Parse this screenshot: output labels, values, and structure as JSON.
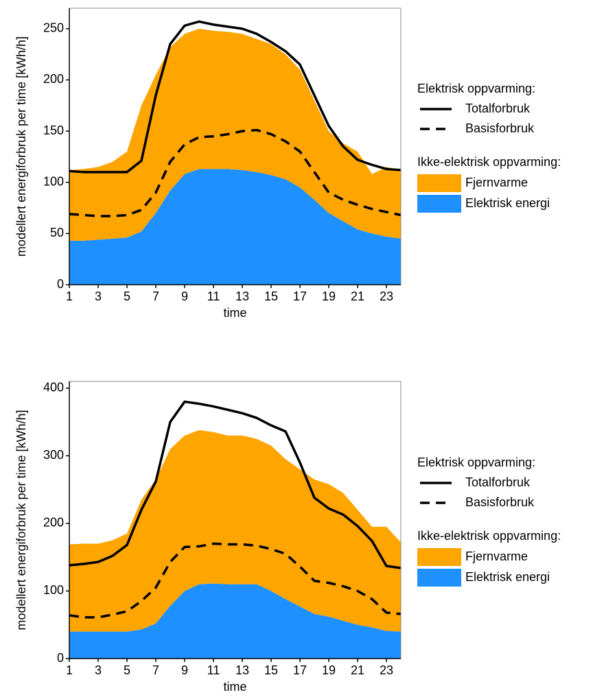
{
  "chart_data": [
    {
      "type": "stacked_area_line",
      "ylabel": "modellert energiforbruk per time [kWh/h]",
      "xlabel": "time",
      "x": [
        1,
        2,
        3,
        4,
        5,
        6,
        7,
        8,
        9,
        10,
        11,
        12,
        13,
        14,
        15,
        16,
        17,
        18,
        19,
        20,
        21,
        22,
        23,
        24
      ],
      "xlim": [
        1,
        24
      ],
      "xticks": [
        1,
        3,
        5,
        7,
        9,
        11,
        13,
        15,
        17,
        19,
        21,
        23
      ],
      "ylim": [
        0,
        270
      ],
      "yticks": [
        0,
        50,
        100,
        150,
        200,
        250
      ],
      "line_legend_title": "Elektrisk oppvarming:",
      "area_legend_title": "Ikke-elektrisk oppvarming:",
      "lines": [
        {
          "name": "Totalforbruk",
          "color": "#000000",
          "dashed": false,
          "values": [
            111,
            110,
            110,
            110,
            110,
            121,
            185,
            235,
            253,
            257,
            254,
            252,
            250,
            245,
            237,
            228,
            215,
            185,
            155,
            135,
            122,
            117,
            113,
            112
          ]
        },
        {
          "name": "Basisforbruk",
          "color": "#000000",
          "dashed": true,
          "values": [
            69,
            68,
            67,
            67,
            68,
            73,
            90,
            120,
            137,
            144,
            145,
            147,
            150,
            151,
            147,
            140,
            130,
            110,
            90,
            83,
            78,
            74,
            71,
            68
          ]
        }
      ],
      "series": [
        {
          "name": "Fjernvarme",
          "color": "#ffa500",
          "values": [
            69,
            70,
            71,
            75,
            84,
            123,
            135,
            140,
            137,
            137,
            135,
            134,
            133,
            130,
            128,
            122,
            115,
            97,
            80,
            76,
            76,
            58,
            68,
            67
          ]
        },
        {
          "name": "Elektrisk energi",
          "color": "#1e90ff",
          "values": [
            43,
            43,
            44,
            45,
            46,
            52,
            70,
            92,
            108,
            113,
            113,
            113,
            112,
            110,
            107,
            103,
            95,
            83,
            70,
            62,
            54,
            50,
            47,
            45
          ]
        }
      ]
    },
    {
      "type": "stacked_area_line",
      "ylabel": "modellert energiforbruk per time [kWh/h]",
      "xlabel": "time",
      "x": [
        1,
        2,
        3,
        4,
        5,
        6,
        7,
        8,
        9,
        10,
        11,
        12,
        13,
        14,
        15,
        16,
        17,
        18,
        19,
        20,
        21,
        22,
        23,
        24
      ],
      "xlim": [
        1,
        24
      ],
      "xticks": [
        1,
        3,
        5,
        7,
        9,
        11,
        13,
        15,
        17,
        19,
        21,
        23
      ],
      "ylim": [
        0,
        410
      ],
      "yticks": [
        0,
        100,
        200,
        300,
        400
      ],
      "line_legend_title": "Elektrisk oppvarming:",
      "area_legend_title": "Ikke-elektrisk oppvarming:",
      "lines": [
        {
          "name": "Totalforbruk",
          "color": "#000000",
          "dashed": false,
          "values": [
            138,
            140,
            143,
            152,
            168,
            220,
            262,
            350,
            380,
            377,
            373,
            368,
            363,
            356,
            345,
            336,
            290,
            238,
            222,
            213,
            196,
            174,
            137,
            134
          ]
        },
        {
          "name": "Basisforbruk",
          "color": "#000000",
          "dashed": true,
          "values": [
            64,
            61,
            61,
            65,
            70,
            85,
            105,
            143,
            165,
            166,
            170,
            169,
            169,
            167,
            162,
            155,
            136,
            115,
            112,
            107,
            100,
            88,
            68,
            66
          ]
        }
      ],
      "series": [
        {
          "name": "Fjernvarme",
          "color": "#ffa500",
          "values": [
            129,
            130,
            130,
            135,
            145,
            192,
            213,
            232,
            230,
            228,
            224,
            220,
            220,
            215,
            215,
            207,
            203,
            199,
            196,
            189,
            170,
            149,
            154,
            132
          ]
        },
        {
          "name": "Elektrisk energi",
          "color": "#1e90ff",
          "values": [
            40,
            40,
            40,
            40,
            40,
            43,
            52,
            78,
            100,
            110,
            111,
            110,
            110,
            110,
            100,
            88,
            77,
            66,
            62,
            56,
            50,
            46,
            41,
            40
          ]
        }
      ]
    }
  ]
}
